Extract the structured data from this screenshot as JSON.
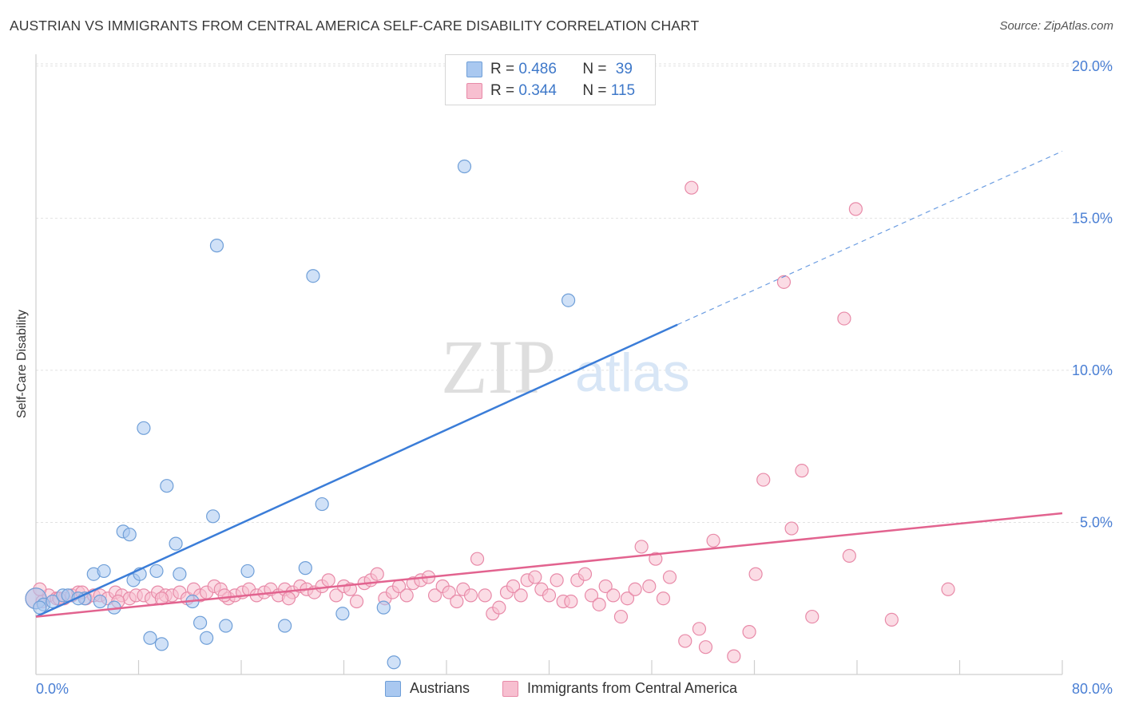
{
  "header": {
    "title": "AUSTRIAN VS IMMIGRANTS FROM CENTRAL AMERICA SELF-CARE DISABILITY CORRELATION CHART",
    "source": "Source: ZipAtlas.com"
  },
  "watermark": {
    "zip": "ZIP",
    "atlas": "atlas"
  },
  "legend": {
    "r_label": "R =",
    "n_label": "N =",
    "rows": [
      {
        "r": "0.486",
        "n": "39",
        "color": "#a9c8f0",
        "border": "#6f9fd8"
      },
      {
        "r": "0.344",
        "n": "115",
        "color": "#f7bfd0",
        "border": "#e88aa8"
      }
    ]
  },
  "bottom_legend": [
    {
      "label": "Austrians",
      "color": "#a9c8f0",
      "border": "#6f9fd8"
    },
    {
      "label": "Immigrants from Central America",
      "color": "#f7bfd0",
      "border": "#e88aa8"
    }
  ],
  "chart_data": {
    "type": "scatter",
    "ylabel": "Self-Care Disability",
    "xlim": [
      0,
      80
    ],
    "ylim": [
      0,
      20.5
    ],
    "x_tick_labels": [
      "0.0%",
      "80.0%"
    ],
    "y_ticks": [
      5,
      10,
      15,
      20
    ],
    "y_tick_labels": [
      "5.0%",
      "10.0%",
      "15.0%",
      "20.0%"
    ],
    "grid": true,
    "colors": {
      "blue": "#3b7dd8",
      "pink": "#e2638f",
      "tick": "#4a7fd4"
    },
    "series": [
      {
        "name": "Austrians",
        "color": "#a9c8f0",
        "stroke": "#6f9fd8",
        "points": [
          [
            0.0,
            2.5
          ],
          [
            0.6,
            2.3
          ],
          [
            1.3,
            2.4
          ],
          [
            2.1,
            2.6
          ],
          [
            3.8,
            2.5
          ],
          [
            4.5,
            3.3
          ],
          [
            5.3,
            3.4
          ],
          [
            6.1,
            2.2
          ],
          [
            6.8,
            4.7
          ],
          [
            7.3,
            4.6
          ],
          [
            7.6,
            3.1
          ],
          [
            8.1,
            3.3
          ],
          [
            8.4,
            8.1
          ],
          [
            9.4,
            3.4
          ],
          [
            10.2,
            6.2
          ],
          [
            10.9,
            4.3
          ],
          [
            11.2,
            3.3
          ],
          [
            12.2,
            2.4
          ],
          [
            12.8,
            1.7
          ],
          [
            13.3,
            1.2
          ],
          [
            13.8,
            5.2
          ],
          [
            14.1,
            14.1
          ],
          [
            14.8,
            1.6
          ],
          [
            16.5,
            3.4
          ],
          [
            19.4,
            1.6
          ],
          [
            21.0,
            3.5
          ],
          [
            21.6,
            13.1
          ],
          [
            22.3,
            5.6
          ],
          [
            23.9,
            2.0
          ],
          [
            27.1,
            2.2
          ],
          [
            27.9,
            0.4
          ],
          [
            33.4,
            16.7
          ],
          [
            41.5,
            12.3
          ],
          [
            2.5,
            2.6
          ],
          [
            3.3,
            2.5
          ],
          [
            5.0,
            2.4
          ],
          [
            8.9,
            1.2
          ],
          [
            9.8,
            1.0
          ],
          [
            0.3,
            2.2
          ]
        ]
      },
      {
        "name": "Immigrants from Central America",
        "color": "#f7bfd0",
        "stroke": "#e88aa8",
        "points": [
          [
            0.0,
            2.5
          ],
          [
            0.5,
            2.4
          ],
          [
            1.0,
            2.6
          ],
          [
            1.6,
            2.5
          ],
          [
            2.2,
            2.5
          ],
          [
            2.8,
            2.6
          ],
          [
            3.3,
            2.7
          ],
          [
            3.9,
            2.5
          ],
          [
            4.5,
            2.6
          ],
          [
            5.0,
            2.6
          ],
          [
            5.6,
            2.5
          ],
          [
            6.2,
            2.7
          ],
          [
            6.7,
            2.6
          ],
          [
            7.3,
            2.5
          ],
          [
            7.8,
            2.6
          ],
          [
            8.4,
            2.6
          ],
          [
            9.0,
            2.5
          ],
          [
            9.5,
            2.7
          ],
          [
            10.1,
            2.6
          ],
          [
            10.6,
            2.6
          ],
          [
            11.2,
            2.7
          ],
          [
            11.8,
            2.5
          ],
          [
            12.3,
            2.8
          ],
          [
            12.8,
            2.6
          ],
          [
            13.3,
            2.7
          ],
          [
            13.9,
            2.9
          ],
          [
            14.4,
            2.8
          ],
          [
            15.0,
            2.5
          ],
          [
            15.5,
            2.6
          ],
          [
            16.1,
            2.7
          ],
          [
            16.6,
            2.8
          ],
          [
            17.2,
            2.6
          ],
          [
            17.8,
            2.7
          ],
          [
            18.3,
            2.8
          ],
          [
            18.9,
            2.6
          ],
          [
            19.4,
            2.8
          ],
          [
            20.0,
            2.7
          ],
          [
            20.6,
            2.9
          ],
          [
            21.1,
            2.8
          ],
          [
            21.7,
            2.7
          ],
          [
            22.3,
            2.9
          ],
          [
            22.8,
            3.1
          ],
          [
            23.4,
            2.6
          ],
          [
            24.0,
            2.9
          ],
          [
            24.5,
            2.8
          ],
          [
            25.0,
            2.4
          ],
          [
            25.6,
            3.0
          ],
          [
            26.1,
            3.1
          ],
          [
            26.6,
            3.3
          ],
          [
            27.2,
            2.5
          ],
          [
            27.8,
            2.7
          ],
          [
            28.3,
            2.9
          ],
          [
            28.9,
            2.6
          ],
          [
            29.4,
            3.0
          ],
          [
            30.0,
            3.1
          ],
          [
            30.6,
            3.2
          ],
          [
            31.1,
            2.6
          ],
          [
            31.7,
            2.9
          ],
          [
            32.2,
            2.7
          ],
          [
            32.8,
            2.4
          ],
          [
            33.3,
            2.8
          ],
          [
            33.9,
            2.6
          ],
          [
            34.4,
            3.8
          ],
          [
            35.0,
            2.6
          ],
          [
            35.6,
            2.0
          ],
          [
            36.1,
            2.2
          ],
          [
            36.7,
            2.7
          ],
          [
            37.2,
            2.9
          ],
          [
            37.8,
            2.6
          ],
          [
            38.3,
            3.1
          ],
          [
            38.9,
            3.2
          ],
          [
            39.4,
            2.8
          ],
          [
            40.0,
            2.6
          ],
          [
            40.6,
            3.1
          ],
          [
            41.1,
            2.4
          ],
          [
            41.7,
            2.4
          ],
          [
            42.2,
            3.1
          ],
          [
            42.8,
            3.3
          ],
          [
            43.3,
            2.6
          ],
          [
            43.9,
            2.3
          ],
          [
            44.4,
            2.9
          ],
          [
            45.0,
            2.6
          ],
          [
            45.6,
            1.9
          ],
          [
            46.1,
            2.5
          ],
          [
            46.7,
            2.8
          ],
          [
            47.2,
            4.2
          ],
          [
            47.8,
            2.9
          ],
          [
            48.3,
            3.8
          ],
          [
            48.9,
            2.5
          ],
          [
            49.4,
            3.2
          ],
          [
            50.6,
            1.1
          ],
          [
            51.1,
            16.0
          ],
          [
            51.7,
            1.5
          ],
          [
            52.2,
            0.9
          ],
          [
            52.8,
            4.4
          ],
          [
            54.4,
            0.6
          ],
          [
            55.6,
            1.4
          ],
          [
            56.1,
            3.3
          ],
          [
            56.7,
            6.4
          ],
          [
            58.3,
            12.9
          ],
          [
            58.9,
            4.8
          ],
          [
            59.7,
            6.7
          ],
          [
            60.5,
            1.9
          ],
          [
            63.0,
            11.7
          ],
          [
            63.4,
            3.9
          ],
          [
            63.9,
            15.3
          ],
          [
            66.7,
            1.8
          ],
          [
            71.1,
            2.8
          ],
          [
            0.3,
            2.8
          ],
          [
            1.8,
            2.5
          ],
          [
            3.6,
            2.7
          ],
          [
            6.4,
            2.4
          ],
          [
            9.8,
            2.5
          ],
          [
            14.7,
            2.6
          ],
          [
            19.7,
            2.5
          ]
        ]
      }
    ],
    "trend_lines": [
      {
        "series": "Austrians",
        "x_start": 0,
        "y_start": 1.9,
        "x_end": 50,
        "y_end": 11.5,
        "dashed_to_x": 80,
        "dashed_to_y": 17.2
      },
      {
        "series": "Immigrants from Central America",
        "x_start": 0,
        "y_start": 1.9,
        "x_end": 80,
        "y_end": 5.3
      }
    ]
  }
}
